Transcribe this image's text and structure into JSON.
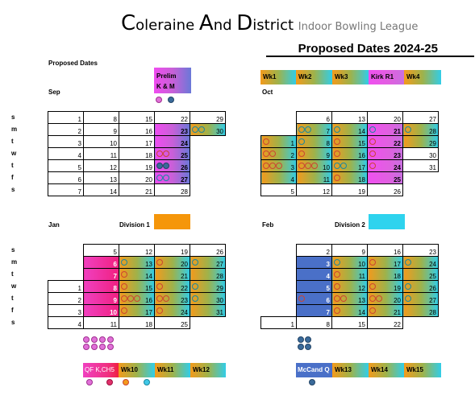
{
  "header": {
    "title_c1": "C",
    "title_r1": "oleraine ",
    "title_c2": "A",
    "title_r2": "nd ",
    "title_c3": "D",
    "title_r3": "istrict ",
    "subtitle": "Indoor Bowling League",
    "proposed_title": "Proposed Dates 2024-25",
    "proposed_label": "Proposed Dates"
  },
  "days": [
    "s",
    "m",
    "t",
    "w",
    "t",
    "f",
    "s"
  ],
  "sep": {
    "label": "Sep",
    "prelim_label": "Prelim",
    "prelim_sub": "K & M",
    "rows": [
      [
        "1",
        "8",
        "15",
        "22",
        "29"
      ],
      [
        "2",
        "9",
        "16",
        "23",
        "30"
      ],
      [
        "3",
        "10",
        "17",
        "24",
        ""
      ],
      [
        "4",
        "11",
        "18",
        "25",
        ""
      ],
      [
        "5",
        "12",
        "19",
        "26",
        ""
      ],
      [
        "6",
        "13",
        "20",
        "27",
        ""
      ],
      [
        "7",
        "14",
        "21",
        "28",
        ""
      ]
    ]
  },
  "oct": {
    "label": "Oct",
    "legend": [
      "Wk1",
      "Wk2",
      "Wk3",
      "Kirk R1",
      "Wk4"
    ],
    "rows": [
      [
        "",
        "6",
        "13",
        "20",
        "27"
      ],
      [
        "",
        "7",
        "14",
        "21",
        "28"
      ],
      [
        "1",
        "8",
        "15",
        "22",
        "29"
      ],
      [
        "2",
        "9",
        "16",
        "23",
        "30"
      ],
      [
        "3",
        "10",
        "17",
        "24",
        "31"
      ],
      [
        "4",
        "11",
        "18",
        "25",
        ""
      ],
      [
        "5",
        "12",
        "19",
        "26",
        ""
      ]
    ]
  },
  "jan": {
    "label": "Jan",
    "division_label": "Division 1",
    "division_color": "#f5960a",
    "legend": [
      "QF K,CH5",
      "Wk10",
      "Wk11",
      "Wk12"
    ],
    "rows": [
      [
        "",
        "5",
        "12",
        "19",
        "26"
      ],
      [
        "",
        "6",
        "13",
        "20",
        "27"
      ],
      [
        "",
        "7",
        "14",
        "21",
        "28"
      ],
      [
        "1",
        "8",
        "15",
        "22",
        "29"
      ],
      [
        "2",
        "9",
        "16",
        "23",
        "30"
      ],
      [
        "3",
        "10",
        "17",
        "24",
        "31"
      ],
      [
        "4",
        "11",
        "18",
        "25",
        ""
      ]
    ]
  },
  "feb": {
    "label": "Feb",
    "division_label": "Division 2",
    "division_color": "#2ed3ee",
    "legend": [
      "McCand Q",
      "Wk13",
      "Wk14",
      "Wk15"
    ],
    "rows": [
      [
        "",
        "2",
        "9",
        "16",
        "23"
      ],
      [
        "",
        "3",
        "10",
        "17",
        "24"
      ],
      [
        "",
        "4",
        "11",
        "18",
        "25"
      ],
      [
        "",
        "5",
        "12",
        "19",
        "26"
      ],
      [
        "",
        "6",
        "13",
        "20",
        "27"
      ],
      [
        "",
        "7",
        "14",
        "21",
        "28"
      ],
      [
        "1",
        "8",
        "15",
        "22",
        ""
      ]
    ]
  },
  "colors": {
    "orange": "#f39a1c",
    "cyan": "#31cde8",
    "magenta": "#f04cf0",
    "blue": "#4a70c8",
    "pink": "#f03080"
  }
}
